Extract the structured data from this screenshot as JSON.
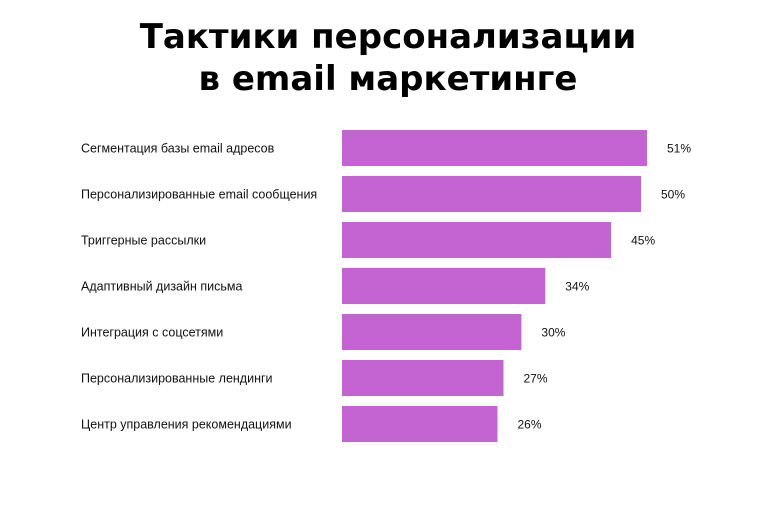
{
  "chart_data": {
    "type": "bar",
    "orientation": "horizontal",
    "title_lines": [
      "Тактики персонализации",
      "в email маркетинге"
    ],
    "categories": [
      "Сегментация базы email адресов",
      "Персонализированные email сообщения",
      "Триггерные рассылки",
      "Адаптивный дизайн письма",
      "Интеграция с соцсетями",
      "Персонализированные лендинги",
      "Центр управления рекомендациями"
    ],
    "values": [
      51,
      50,
      45,
      34,
      30,
      27,
      26
    ],
    "value_labels": [
      "51%",
      "50%",
      "45%",
      "34%",
      "30%",
      "27%",
      "26%"
    ],
    "xlim": [
      0,
      51
    ],
    "grid": false,
    "legend": "none",
    "bar_color": "#c364d2"
  }
}
